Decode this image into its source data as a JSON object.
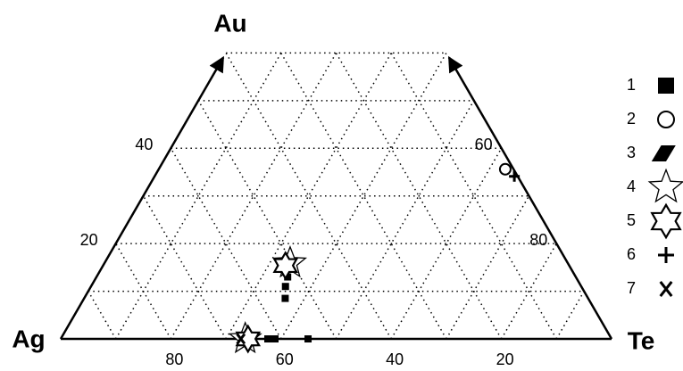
{
  "chart_data": {
    "type": "ternary",
    "top_label": "Au",
    "left_label": "Ag",
    "right_label": "Te",
    "aulim": [
      0,
      60
    ],
    "grid": [
      10,
      20,
      30,
      40,
      50,
      60,
      70,
      80,
      90
    ],
    "left_ticks": [
      20,
      40
    ],
    "left_tick_au": [
      20,
      40
    ],
    "right_ticks": [
      60,
      80
    ],
    "right_tick_au": [
      40,
      20
    ],
    "bottom_ticks": [
      80,
      60,
      40,
      20
    ],
    "bottom_tick_te": [
      20,
      40,
      60,
      80
    ],
    "color": "#000000",
    "series": [
      {
        "name": "1",
        "marker": "square",
        "au": [
          15,
          13,
          11,
          8.5,
          0,
          0,
          0
        ],
        "te": [
          34.5,
          34.7,
          35.3,
          36.5,
          37.6,
          38.9,
          44.9
        ]
      },
      {
        "name": "2",
        "marker": "circle",
        "au": [
          35.6
        ],
        "te": [
          62.9
        ]
      },
      {
        "name": "3",
        "marker": "parallelogram",
        "au": [
          15.4
        ],
        "te": [
          32.8
        ]
      },
      {
        "name": "4",
        "marker": "star",
        "au": [
          15.9,
          0
        ],
        "te": [
          33.7,
          33.5
        ]
      },
      {
        "name": "5",
        "marker": "star6",
        "au": [
          15.4,
          0
        ],
        "te": [
          33.1,
          34
        ]
      },
      {
        "name": "6",
        "marker": "plus",
        "au": [
          34.1
        ],
        "te": [
          65.3
        ]
      },
      {
        "name": "7",
        "marker": "x",
        "au": [
          0
        ],
        "te": [
          32.7
        ]
      }
    ]
  }
}
